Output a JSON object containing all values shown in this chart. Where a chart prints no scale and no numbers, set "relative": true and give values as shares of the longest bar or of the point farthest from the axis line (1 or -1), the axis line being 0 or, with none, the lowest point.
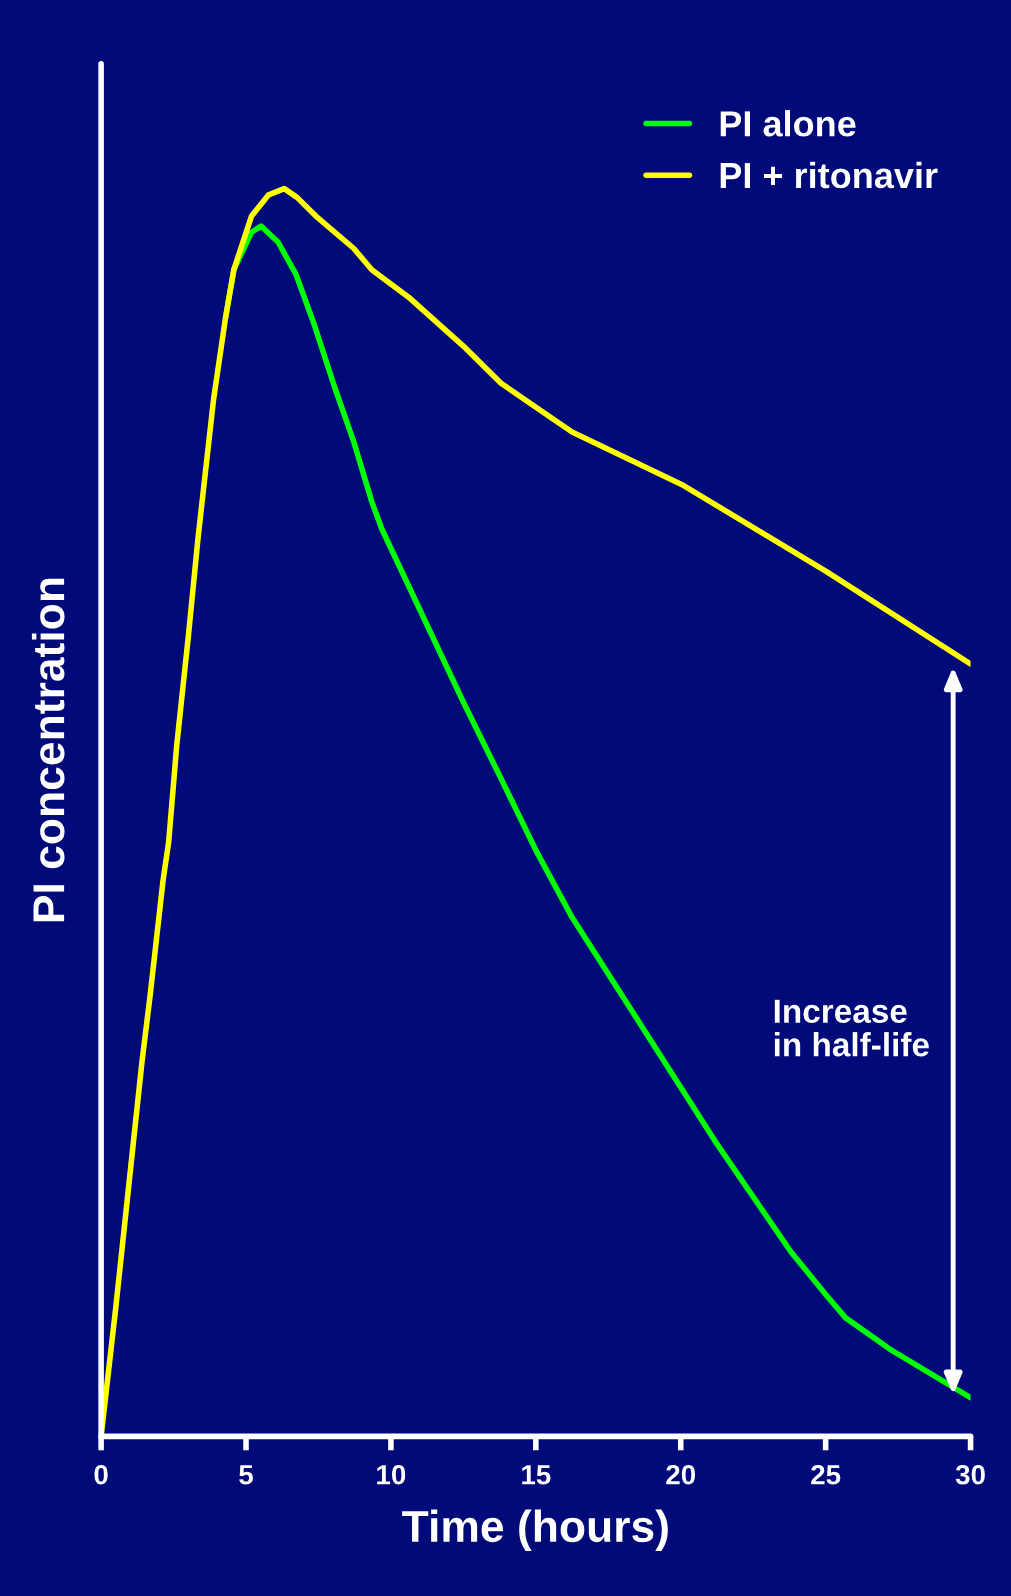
{
  "chart_data": {
    "type": "line",
    "xlabel": "Time (hours)",
    "ylabel": "PI concentration",
    "relative": true,
    "xlim": [
      0,
      30
    ],
    "xticks": [
      0,
      5,
      10,
      15,
      20,
      25,
      30
    ],
    "legend": "top right",
    "grid": false,
    "marker": "none",
    "line_style": "solid",
    "series": [
      {
        "name": "PI alone",
        "color": "#00ff00",
        "x": [
          4.29,
          4.58,
          5.19,
          5.52,
          6.11,
          6.73,
          7.34,
          8.07,
          8.72,
          9.34,
          9.69,
          12.49,
          13.76,
          15.04,
          16.25,
          21.26,
          23.8,
          25.03,
          25.69,
          27.21,
          30
        ],
        "values": [
          0.896,
          0.935,
          0.965,
          0.97,
          0.957,
          0.931,
          0.892,
          0.84,
          0.797,
          0.749,
          0.727,
          0.589,
          0.529,
          0.468,
          0.416,
          0.234,
          0.148,
          0.113,
          0.095,
          0.07,
          0.031
        ]
      },
      {
        "name": "PI + ritonavir",
        "color": "#ffff00",
        "x": [
          0,
          0.51,
          0.95,
          1.41,
          1.7,
          2.14,
          2.33,
          2.61,
          3.01,
          3.34,
          3.88,
          4.29,
          4.58,
          5.19,
          5.78,
          6.32,
          6.76,
          7.41,
          8.72,
          9.34,
          10.61,
          12.49,
          13.8,
          16.25,
          20.1,
          25.03,
          30
        ],
        "values": [
          0,
          0.104,
          0.2,
          0.3,
          0.355,
          0.446,
          0.476,
          0.554,
          0.641,
          0.719,
          0.831,
          0.896,
          0.935,
          0.978,
          0.995,
          1.0,
          0.993,
          0.978,
          0.952,
          0.935,
          0.913,
          0.874,
          0.844,
          0.805,
          0.762,
          0.693,
          0.619
        ]
      }
    ],
    "annotations": [
      "Increase\nin half-life"
    ]
  }
}
